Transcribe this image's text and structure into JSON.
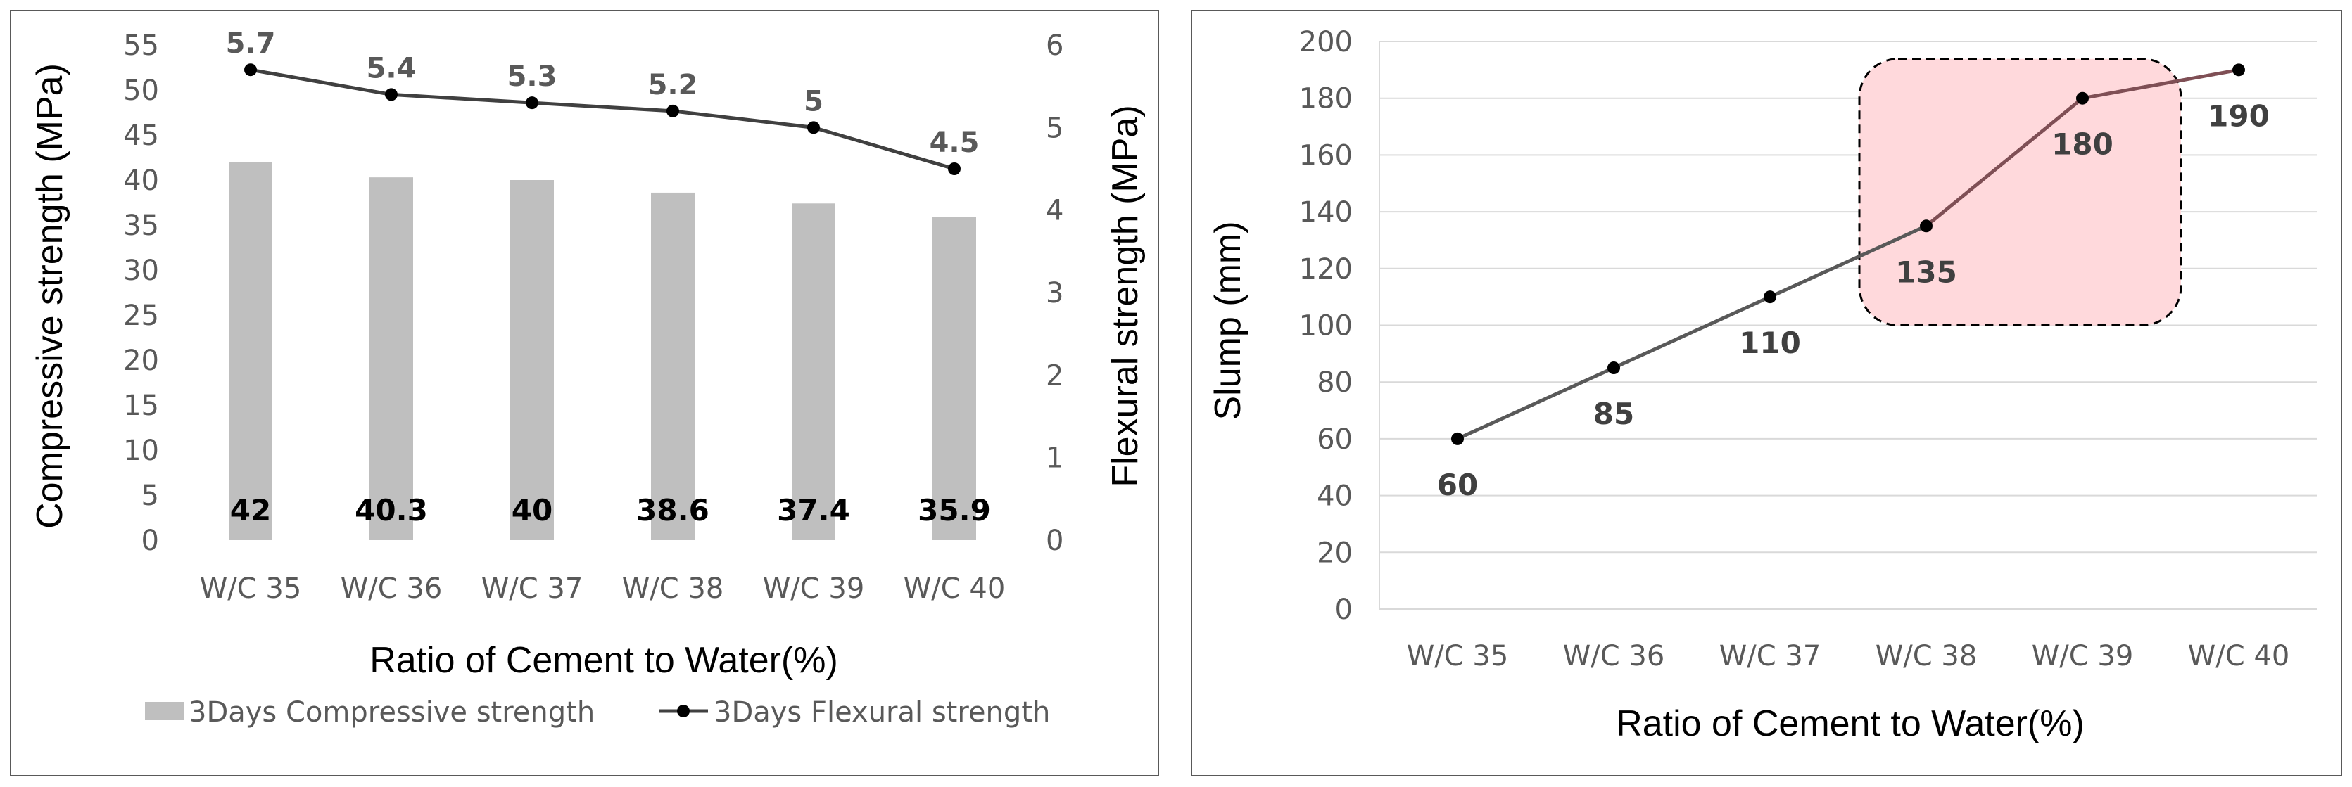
{
  "chart_data": [
    {
      "type": "bar",
      "categories": [
        "W/C 35",
        "W/C 36",
        "W/C 37",
        "W/C 38",
        "W/C 39",
        "W/C 40"
      ],
      "series": [
        {
          "name": "3Days Compressive strength",
          "type": "bar",
          "axis": "left",
          "values": [
            42,
            40.3,
            40,
            38.6,
            37.4,
            35.9
          ],
          "labels": [
            "42",
            "40.3",
            "40",
            "38.6",
            "37.4",
            "35.9"
          ],
          "color": "#bfbfbf"
        },
        {
          "name": "3Days Flexural strength",
          "type": "line",
          "axis": "right",
          "values": [
            5.7,
            5.4,
            5.3,
            5.2,
            5,
            4.5
          ],
          "labels": [
            "5.7",
            "5.4",
            "5.3",
            "5.2",
            "5",
            "4.5"
          ],
          "color": "#404040"
        }
      ],
      "xlabel": "Ratio of Cement to Water(%)",
      "ylabel": "Compressive strength (MPa)",
      "y2label": "Flexural strength (MPa)",
      "ylim": [
        0,
        55
      ],
      "y2lim": [
        0,
        6
      ],
      "yticks": [
        "0",
        "5",
        "10",
        "15",
        "20",
        "25",
        "30",
        "35",
        "40",
        "45",
        "50",
        "55"
      ],
      "y2ticks": [
        "0",
        "1",
        "2",
        "3",
        "4",
        "5",
        "6"
      ],
      "grid": false,
      "legend": "bottom"
    },
    {
      "type": "line",
      "categories": [
        "W/C 35",
        "W/C 36",
        "W/C 37",
        "W/C 38",
        "W/C 39",
        "W/C 40"
      ],
      "series": [
        {
          "name": "Slump",
          "values": [
            60,
            85,
            110,
            135,
            180,
            190
          ],
          "labels": [
            "60",
            "85",
            "110",
            "135",
            "180",
            "190"
          ],
          "color": "#595959",
          "highlight_color": "#7f4f55"
        }
      ],
      "highlight_range": [
        "W/C 38",
        "W/C 39"
      ],
      "highlight_fill": "#ffd9dc",
      "xlabel": "Ratio of Cement to Water(%)",
      "ylabel": "Slump (mm)",
      "ylim": [
        0,
        200
      ],
      "yticks": [
        "0",
        "20",
        "40",
        "60",
        "80",
        "100",
        "120",
        "140",
        "160",
        "180",
        "200"
      ],
      "grid": true,
      "legend": "none"
    }
  ]
}
